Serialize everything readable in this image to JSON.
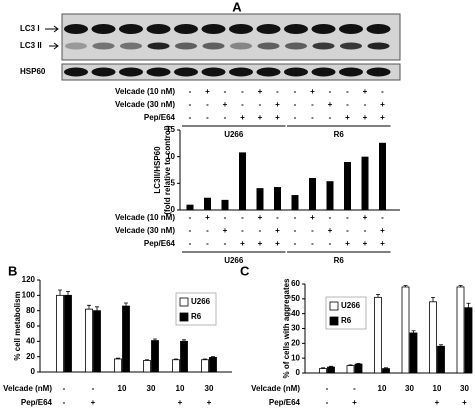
{
  "figure": {
    "panels": [
      "A",
      "B",
      "C"
    ]
  },
  "blot": {
    "labels": [
      "LC3 I",
      "LC3 II",
      "HSP60"
    ]
  },
  "chart_data": [
    {
      "type": "bar",
      "ylabel": [
        "LC3II/HSP60",
        "(fold relative to control)"
      ],
      "values": [
        1,
        2.3,
        1.9,
        10.8,
        4.1,
        4.3,
        2.8,
        6,
        5.4,
        9,
        10,
        12.6
      ],
      "color": "#000000",
      "ylim": [
        0,
        15
      ],
      "yticks": [
        0,
        5,
        10,
        15
      ],
      "treatments": [
        {
          "label": "Velcade (10 nM)",
          "signs": [
            "-",
            "+",
            "-",
            "-",
            "+",
            "-",
            "-",
            "+",
            "-",
            "-",
            "+",
            "-"
          ]
        },
        {
          "label": "Velcade (30 nM)",
          "signs": [
            "-",
            "-",
            "+",
            "-",
            "-",
            "+",
            "-",
            "-",
            "+",
            "-",
            "-",
            "+"
          ]
        },
        {
          "label": "Pep/E64",
          "signs": [
            "-",
            "-",
            "-",
            "+",
            "+",
            "+",
            "-",
            "-",
            "-",
            "+",
            "+",
            "+"
          ]
        }
      ],
      "groups": [
        "U266",
        "R6"
      ]
    },
    {
      "type": "bar",
      "ylabel": "% cell metabolism",
      "series": [
        {
          "name": "U266",
          "color": "#ffffff",
          "values": [
            100,
            82,
            17,
            15,
            16,
            16
          ],
          "errors": [
            7,
            5,
            1,
            1,
            1,
            1
          ]
        },
        {
          "name": "R6",
          "color": "#000000",
          "values": [
            100,
            80,
            86,
            41,
            40,
            19
          ],
          "errors": [
            5,
            5,
            4,
            2,
            2,
            1
          ]
        }
      ],
      "ylim": [
        0,
        120
      ],
      "yticks": [
        0,
        20,
        40,
        60,
        80,
        100,
        120
      ],
      "treatments": [
        {
          "label": "Velcade (nM)",
          "signs": [
            "-",
            "-",
            "10",
            "30",
            "10",
            "30"
          ]
        },
        {
          "label": "Pep/E64",
          "signs": [
            "-",
            "+",
            null,
            null,
            "+",
            "+"
          ]
        }
      ]
    },
    {
      "type": "bar",
      "ylabel": "% of cells with aggregates",
      "series": [
        {
          "name": "U266",
          "color": "#ffffff",
          "values": [
            3,
            5,
            51,
            58,
            48,
            58
          ],
          "errors": [
            0.5,
            0.5,
            2,
            1,
            3,
            1
          ]
        },
        {
          "name": "R6",
          "color": "#000000",
          "values": [
            4,
            6,
            3,
            27,
            18,
            44
          ],
          "errors": [
            0.5,
            0.5,
            0.5,
            1.5,
            1,
            3
          ]
        }
      ],
      "ylim": [
        0,
        60
      ],
      "yticks": [
        0,
        10,
        20,
        30,
        40,
        50,
        60
      ],
      "treatments": [
        {
          "label": "Velcade (nM)",
          "signs": [
            "-",
            "-",
            "10",
            "30",
            "10",
            "30"
          ]
        },
        {
          "label": "Pep/E64",
          "signs": [
            "-",
            "+",
            null,
            null,
            "+",
            "+"
          ]
        }
      ]
    }
  ]
}
